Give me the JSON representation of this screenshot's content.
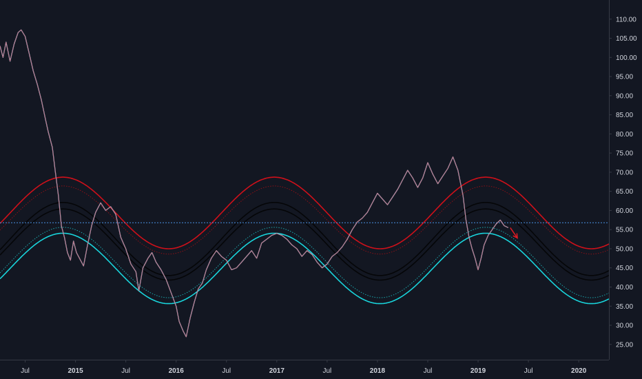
{
  "chart_data": {
    "type": "line",
    "title": "",
    "xlabel": "",
    "ylabel": "",
    "ylim": [
      21.0,
      115.0
    ],
    "xlim": [
      2014.25,
      2020.3
    ],
    "y_ticks": [
      "110.00",
      "105.00",
      "100.00",
      "95.00",
      "90.00",
      "85.00",
      "80.00",
      "75.00",
      "70.00",
      "65.00",
      "60.00",
      "55.00",
      "50.00",
      "45.00",
      "40.00",
      "35.00",
      "30.00",
      "25.00"
    ],
    "x_ticks": [
      {
        "label": "Jul",
        "x": 2014.5
      },
      {
        "label": "2015",
        "x": 2015.0
      },
      {
        "label": "Jul",
        "x": 2015.5
      },
      {
        "label": "2016",
        "x": 2016.0
      },
      {
        "label": "Jul",
        "x": 2016.5
      },
      {
        "label": "2017",
        "x": 2017.0
      },
      {
        "label": "Jul",
        "x": 2017.5
      },
      {
        "label": "2018",
        "x": 2018.0
      },
      {
        "label": "Jul",
        "x": 2018.5
      },
      {
        "label": "2019",
        "x": 2019.0
      },
      {
        "label": "Jul",
        "x": 2019.5
      },
      {
        "label": "2020",
        "x": 2020.0
      }
    ],
    "grid": false,
    "horizontal_line": {
      "y": 56.8,
      "color": "#4a90e2"
    },
    "price_series": {
      "name": "",
      "color": "#b8c0dd",
      "points": [
        [
          2014.25,
          103.0
        ],
        [
          2014.28,
          100.0
        ],
        [
          2014.31,
          104.0
        ],
        [
          2014.35,
          99.0
        ],
        [
          2014.39,
          103.5
        ],
        [
          2014.43,
          106.5
        ],
        [
          2014.46,
          107.2
        ],
        [
          2014.5,
          105.5
        ],
        [
          2014.54,
          101.0
        ],
        [
          2014.58,
          96.5
        ],
        [
          2014.62,
          93.0
        ],
        [
          2014.66,
          89.0
        ],
        [
          2014.7,
          84.0
        ],
        [
          2014.73,
          80.5
        ],
        [
          2014.77,
          76.5
        ],
        [
          2014.8,
          70.0
        ],
        [
          2014.83,
          64.0
        ],
        [
          2014.86,
          56.0
        ],
        [
          2014.89,
          53.0
        ],
        [
          2014.92,
          49.0
        ],
        [
          2014.95,
          47.0
        ],
        [
          2014.98,
          52.0
        ],
        [
          2015.01,
          49.0
        ],
        [
          2015.04,
          47.5
        ],
        [
          2015.08,
          45.5
        ],
        [
          2015.12,
          51.0
        ],
        [
          2015.16,
          56.0
        ],
        [
          2015.2,
          59.5
        ],
        [
          2015.25,
          62.0
        ],
        [
          2015.3,
          60.0
        ],
        [
          2015.35,
          61.0
        ],
        [
          2015.4,
          59.0
        ],
        [
          2015.45,
          53.0
        ],
        [
          2015.5,
          50.0
        ],
        [
          2015.55,
          46.0
        ],
        [
          2015.6,
          44.0
        ],
        [
          2015.63,
          39.0
        ],
        [
          2015.67,
          45.0
        ],
        [
          2015.72,
          47.5
        ],
        [
          2015.76,
          49.0
        ],
        [
          2015.8,
          46.5
        ],
        [
          2015.85,
          44.5
        ],
        [
          2015.9,
          42.0
        ],
        [
          2015.95,
          38.5
        ],
        [
          2016.0,
          35.0
        ],
        [
          2016.03,
          31.0
        ],
        [
          2016.07,
          28.5
        ],
        [
          2016.1,
          27.0
        ],
        [
          2016.14,
          32.0
        ],
        [
          2016.18,
          36.0
        ],
        [
          2016.22,
          39.5
        ],
        [
          2016.26,
          41.0
        ],
        [
          2016.3,
          44.5
        ],
        [
          2016.35,
          47.5
        ],
        [
          2016.4,
          49.5
        ],
        [
          2016.45,
          48.0
        ],
        [
          2016.5,
          47.0
        ],
        [
          2016.55,
          44.5
        ],
        [
          2016.6,
          45.0
        ],
        [
          2016.65,
          46.5
        ],
        [
          2016.7,
          48.0
        ],
        [
          2016.75,
          49.5
        ],
        [
          2016.8,
          47.5
        ],
        [
          2016.85,
          51.5
        ],
        [
          2016.9,
          52.5
        ],
        [
          2016.95,
          53.5
        ],
        [
          2017.0,
          54.0
        ],
        [
          2017.05,
          53.5
        ],
        [
          2017.1,
          52.5
        ],
        [
          2017.15,
          51.0
        ],
        [
          2017.2,
          50.0
        ],
        [
          2017.25,
          48.0
        ],
        [
          2017.3,
          49.5
        ],
        [
          2017.35,
          48.5
        ],
        [
          2017.4,
          46.5
        ],
        [
          2017.45,
          45.0
        ],
        [
          2017.5,
          46.0
        ],
        [
          2017.55,
          48.0
        ],
        [
          2017.6,
          49.0
        ],
        [
          2017.65,
          50.5
        ],
        [
          2017.7,
          52.5
        ],
        [
          2017.75,
          55.0
        ],
        [
          2017.8,
          57.0
        ],
        [
          2017.85,
          58.0
        ],
        [
          2017.9,
          59.5
        ],
        [
          2017.95,
          62.0
        ],
        [
          2018.0,
          64.5
        ],
        [
          2018.05,
          63.0
        ],
        [
          2018.1,
          61.5
        ],
        [
          2018.15,
          63.5
        ],
        [
          2018.2,
          65.5
        ],
        [
          2018.25,
          68.0
        ],
        [
          2018.3,
          70.5
        ],
        [
          2018.35,
          68.5
        ],
        [
          2018.4,
          66.0
        ],
        [
          2018.45,
          68.5
        ],
        [
          2018.5,
          72.5
        ],
        [
          2018.55,
          69.5
        ],
        [
          2018.6,
          67.0
        ],
        [
          2018.65,
          69.0
        ],
        [
          2018.7,
          71.0
        ],
        [
          2018.75,
          74.0
        ],
        [
          2018.8,
          70.5
        ],
        [
          2018.85,
          64.0
        ],
        [
          2018.88,
          57.5
        ],
        [
          2018.91,
          53.0
        ],
        [
          2018.94,
          50.0
        ],
        [
          2018.97,
          47.5
        ],
        [
          2019.0,
          44.5
        ],
        [
          2019.03,
          47.5
        ],
        [
          2019.06,
          51.0
        ],
        [
          2019.1,
          53.5
        ],
        [
          2019.14,
          55.0
        ],
        [
          2019.18,
          56.5
        ],
        [
          2019.22,
          57.5
        ],
        [
          2019.26,
          56.0
        ],
        [
          2019.3,
          55.5
        ]
      ]
    },
    "bands": {
      "period_years": 2.1,
      "peak_x": 2016.975,
      "lines": [
        {
          "name": "",
          "color": "#d0101a",
          "style": "solid",
          "center": 59.35,
          "amplitude": 9.35
        },
        {
          "name": "",
          "color": "#8f1016",
          "style": "dotted",
          "center": 57.5,
          "amplitude": 8.9
        },
        {
          "name": "",
          "color": "#050608",
          "style": "solid",
          "center": 52.55,
          "amplitude": 9.55
        },
        {
          "name": "",
          "color": "#050608",
          "style": "solid",
          "center": 51.1,
          "amplitude": 9.3
        },
        {
          "name": "",
          "color": "#1aa5ab",
          "style": "dotted",
          "center": 46.4,
          "amplitude": 9.2
        },
        {
          "name": "",
          "color": "#19d5dc",
          "style": "solid",
          "center": 44.85,
          "amplitude": 9.2
        }
      ]
    },
    "arrow": {
      "from": [
        2019.32,
        55.5
      ],
      "to": [
        2019.39,
        52.8
      ],
      "color": "#e01b24"
    }
  }
}
